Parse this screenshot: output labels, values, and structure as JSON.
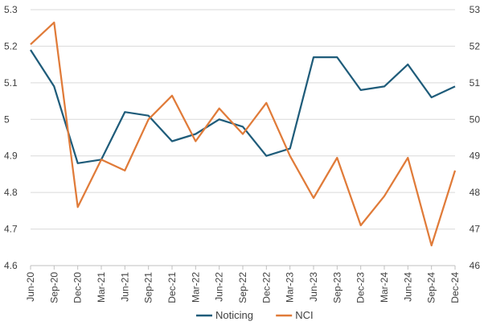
{
  "chart_data": {
    "type": "line",
    "title": "",
    "xlabel": "",
    "ylabel": "",
    "categories": [
      "Jun-20",
      "Sep-20",
      "Dec-20",
      "Mar-21",
      "Jun-21",
      "Sep-21",
      "Dec-21",
      "Mar-22",
      "Jun-22",
      "Sep-22",
      "Dec-22",
      "Mar-23",
      "Jun-23",
      "Sep-23",
      "Dec-23",
      "Mar-24",
      "Jun-24",
      "Sep-24",
      "Dec-24"
    ],
    "series": [
      {
        "name": "Noticing",
        "axis": "left",
        "color": "#1f5c7a",
        "values": [
          5.19,
          5.09,
          4.88,
          4.89,
          5.02,
          5.01,
          4.94,
          4.96,
          5.0,
          4.98,
          4.9,
          4.92,
          5.17,
          5.17,
          5.08,
          5.09,
          5.15,
          5.06,
          5.09
        ]
      },
      {
        "name": "NCI",
        "axis": "right",
        "color": "#e07b39",
        "values": [
          52.05,
          52.65,
          47.6,
          48.9,
          48.6,
          50.0,
          50.65,
          49.4,
          50.3,
          49.6,
          50.45,
          49.0,
          47.85,
          48.95,
          47.1,
          47.9,
          48.95,
          46.55,
          48.6
        ]
      }
    ],
    "y_left": {
      "ylim": [
        4.6,
        5.3
      ],
      "ticks": [
        "4.6",
        "4.7",
        "4.8",
        "4.9",
        "5",
        "5.1",
        "5.2",
        "5.3"
      ]
    },
    "y_right": {
      "ylim": [
        46,
        53
      ],
      "ticks": [
        "46",
        "47",
        "48",
        "49",
        "50",
        "51",
        "52",
        "53"
      ]
    },
    "grid": true,
    "legend_position": "bottom-center"
  }
}
